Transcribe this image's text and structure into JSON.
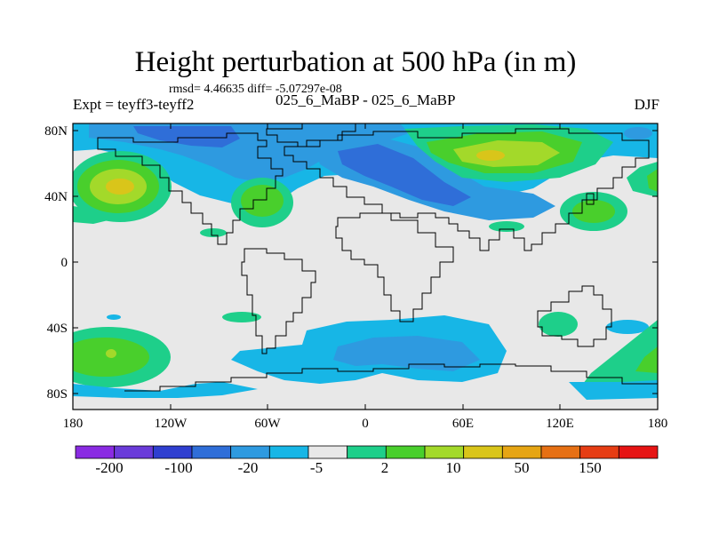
{
  "header": {
    "title": "Height perturbation at 500 hPa (in m)",
    "stats": "rmsd= 4.46635 diff= -5.07297e-08",
    "expt": "Expt = teyff3-teyff2",
    "period": "025_6_MaBP - 025_6_MaBP",
    "season": "DJF"
  },
  "axes": {
    "y_ticks": [
      "80N",
      "40N",
      "0",
      "40S",
      "80S"
    ],
    "x_ticks": [
      "180",
      "120W",
      "60W",
      "0",
      "60E",
      "120E",
      "180"
    ]
  },
  "colorbar": {
    "colors": [
      "#8a2be2",
      "#6a3bd9",
      "#2f3fd0",
      "#2f6ed8",
      "#2e9ae0",
      "#17b6e6",
      "#e8e8e8",
      "#1ecf8a",
      "#49cf2c",
      "#a3d92a",
      "#d9c51a",
      "#e6a514",
      "#e67014",
      "#e63d14",
      "#e61414"
    ],
    "labels": [
      "-200",
      "-100",
      "-20",
      "-5",
      "2",
      "10",
      "50",
      "150"
    ]
  },
  "field_colors": {
    "light_blue": "#17b6e6",
    "mid_blue": "#2e9ae0",
    "dark_blue": "#2f6ed8",
    "teal": "#1ecf8a",
    "green": "#49cf2c",
    "yellow_green": "#a3d92a",
    "yellow": "#d9c51a",
    "neutral": "#e8e8e8"
  }
}
